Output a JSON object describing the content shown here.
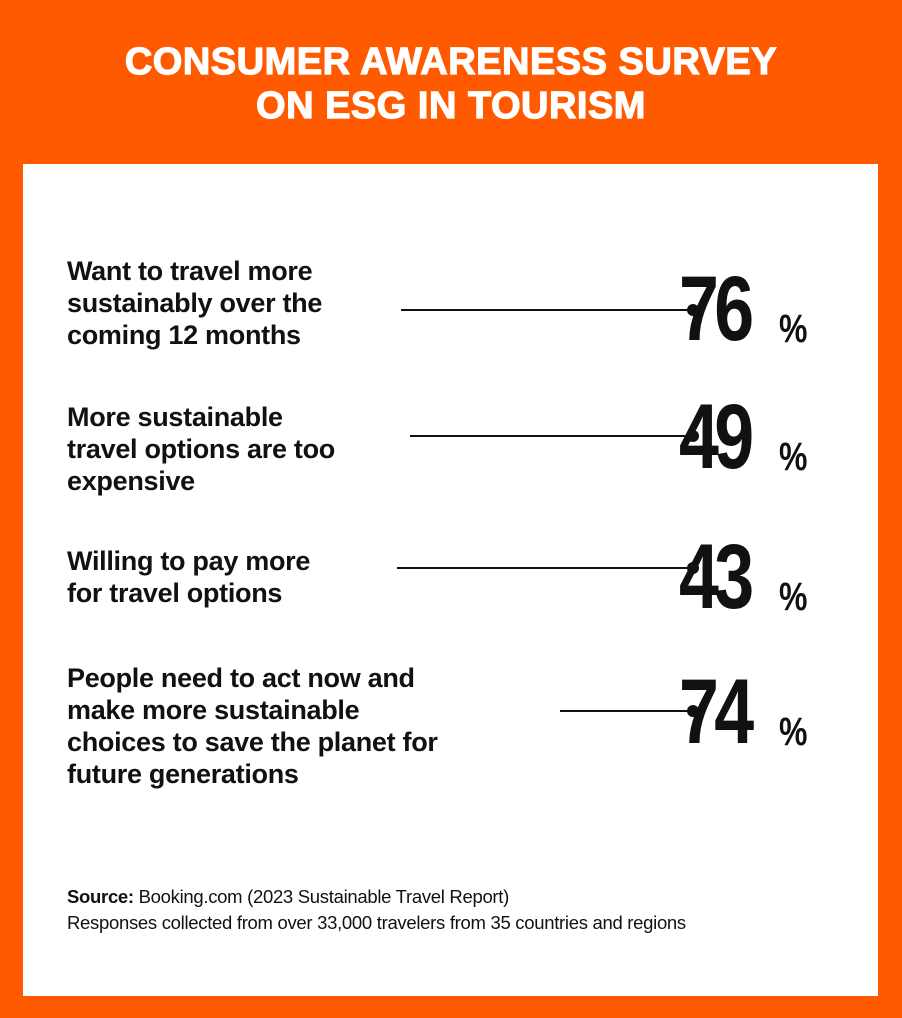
{
  "title": {
    "line1": "CONSUMER AWARENESS SURVEY",
    "line2": "ON ESG IN TOURISM"
  },
  "stats": [
    {
      "lines": [
        "Want to travel more",
        "sustainably over the",
        "coming 12 months"
      ],
      "value": "76",
      "unit": "%"
    },
    {
      "lines": [
        "More sustainable",
        "travel options are too",
        "expensive"
      ],
      "value": "49",
      "unit": "%"
    },
    {
      "lines": [
        "Willing to pay more",
        "for travel options"
      ],
      "value": "43",
      "unit": "%"
    },
    {
      "lines": [
        "People need to act now and",
        "make more sustainable",
        "choices to save the planet for",
        "future generations"
      ],
      "value": "74",
      "unit": "%"
    }
  ],
  "footer": {
    "source_label": "Source:",
    "source_text": " Booking.com (2023 Sustainable Travel Report)",
    "note": "Responses collected from over 33,000 travelers from 35 countries and regions"
  },
  "colors": {
    "background": "#FF5A00",
    "panel": "#FFFFFF",
    "text": "#111111"
  }
}
